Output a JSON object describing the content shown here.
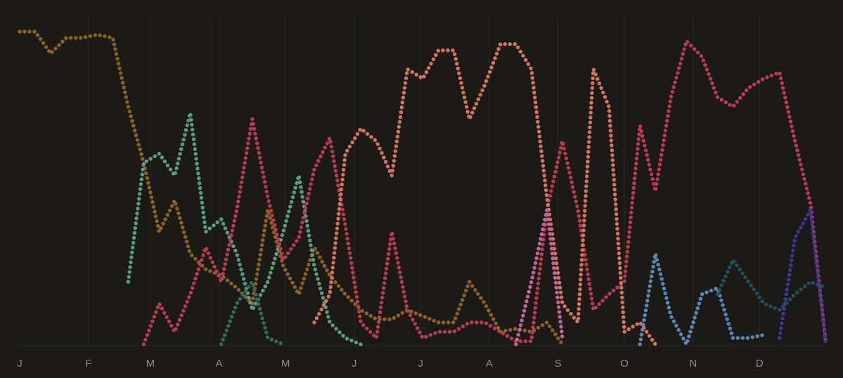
{
  "chart_data": {
    "type": "dotted-line",
    "x": [
      0,
      7,
      14,
      21,
      28,
      35,
      42,
      49,
      56,
      63,
      70,
      77,
      84,
      91,
      98,
      105,
      112,
      119,
      126,
      133,
      140,
      147,
      154,
      161,
      168,
      175,
      182,
      189,
      196,
      203,
      210,
      217,
      224,
      231,
      238,
      245,
      252,
      259,
      266,
      273,
      280,
      287,
      294,
      301,
      308,
      315,
      322,
      329,
      336,
      343,
      350,
      357,
      364
    ],
    "xlim": [
      0,
      365
    ],
    "xticks": [
      {
        "value": 0,
        "label": "J"
      },
      {
        "value": 31,
        "label": "F"
      },
      {
        "value": 59,
        "label": "M"
      },
      {
        "value": 90,
        "label": "A"
      },
      {
        "value": 120,
        "label": "M"
      },
      {
        "value": 151,
        "label": "J"
      },
      {
        "value": 181,
        "label": "J"
      },
      {
        "value": 212,
        "label": "A"
      },
      {
        "value": 243,
        "label": "S"
      },
      {
        "value": 273,
        "label": "O"
      },
      {
        "value": 304,
        "label": "N"
      },
      {
        "value": 334,
        "label": "D"
      }
    ],
    "ylim": [
      0,
      100
    ],
    "grid": true,
    "series": [
      {
        "color": "#8c5f24",
        "values": [
          100,
          100,
          93,
          98,
          98,
          99,
          98,
          76,
          58,
          36,
          46,
          29,
          24,
          22,
          18,
          13,
          43,
          25,
          16,
          31,
          22,
          16,
          11,
          8,
          8,
          11,
          9,
          7,
          7,
          20,
          13,
          4,
          5,
          4,
          7,
          0,
          null,
          null,
          null,
          null,
          null,
          null,
          null,
          null,
          null,
          null,
          null,
          null,
          null,
          null,
          null,
          null,
          null
        ]
      },
      {
        "color": "#5a9b7c",
        "values": [
          null,
          null,
          null,
          null,
          null,
          null,
          null,
          20,
          58,
          61,
          54,
          74,
          36,
          40,
          29,
          11,
          20,
          36,
          54,
          25,
          7,
          2,
          0,
          null,
          null,
          null,
          null,
          null,
          null,
          null,
          null,
          null,
          null,
          null,
          null,
          null,
          null,
          null,
          null,
          null,
          null,
          null,
          null,
          null,
          null,
          null,
          null,
          null,
          null,
          null,
          null,
          null,
          null
        ]
      },
      {
        "color": "#2f6b4f",
        "values": [
          null,
          null,
          null,
          null,
          null,
          null,
          null,
          null,
          null,
          null,
          null,
          null,
          null,
          0,
          13,
          20,
          2,
          0,
          null,
          null,
          null,
          null,
          null,
          null,
          null,
          null,
          null,
          null,
          null,
          null,
          null,
          null,
          null,
          null,
          null,
          null,
          null,
          null,
          null,
          null,
          null,
          null,
          null,
          null,
          null,
          null,
          null,
          null,
          null,
          null,
          null,
          null,
          null
        ]
      },
      {
        "color": "#b63a50",
        "values": [
          null,
          null,
          null,
          null,
          null,
          null,
          null,
          null,
          0,
          13,
          4,
          16,
          31,
          20,
          43,
          72,
          47,
          27,
          34,
          56,
          66,
          38,
          7,
          2,
          36,
          11,
          2,
          4,
          4,
          7,
          7,
          4,
          1,
          1,
          43,
          65,
          43,
          11,
          16,
          20,
          70,
          49,
          79,
          97,
          92,
          79,
          76,
          82,
          85,
          87,
          65,
          45,
          0
        ]
      },
      {
        "color": "#d2735b",
        "values": [
          null,
          null,
          null,
          null,
          null,
          null,
          null,
          null,
          null,
          null,
          null,
          null,
          null,
          null,
          null,
          null,
          null,
          null,
          null,
          7,
          16,
          61,
          69,
          65,
          54,
          88,
          85,
          94,
          94,
          72,
          83,
          96,
          96,
          88,
          47,
          13,
          7,
          88,
          76,
          4,
          7,
          0,
          null,
          null,
          null,
          null,
          null,
          null,
          null,
          null,
          null,
          null,
          null
        ]
      },
      {
        "color": "#c0649a",
        "values": [
          null,
          null,
          null,
          null,
          null,
          null,
          null,
          null,
          null,
          null,
          null,
          null,
          null,
          null,
          null,
          null,
          null,
          null,
          null,
          null,
          null,
          null,
          null,
          null,
          null,
          null,
          null,
          null,
          null,
          null,
          null,
          null,
          0,
          20,
          43,
          2,
          null,
          null,
          null,
          null,
          null,
          null,
          null,
          null,
          null,
          null,
          null,
          null,
          null,
          null,
          null,
          null,
          null
        ]
      },
      {
        "color": "#5a86b5",
        "values": [
          null,
          null,
          null,
          null,
          null,
          null,
          null,
          null,
          null,
          null,
          null,
          null,
          null,
          null,
          null,
          null,
          null,
          null,
          null,
          null,
          null,
          null,
          null,
          null,
          null,
          null,
          null,
          null,
          null,
          null,
          null,
          null,
          null,
          null,
          null,
          null,
          null,
          null,
          null,
          null,
          0,
          29,
          9,
          0,
          16,
          18,
          2,
          2,
          3,
          null,
          null,
          null,
          null
        ]
      },
      {
        "color": "#1f4e5a",
        "values": [
          null,
          null,
          null,
          null,
          null,
          null,
          null,
          null,
          null,
          null,
          null,
          null,
          null,
          null,
          null,
          null,
          null,
          null,
          null,
          null,
          null,
          null,
          null,
          null,
          null,
          null,
          null,
          null,
          null,
          null,
          null,
          null,
          null,
          null,
          null,
          null,
          null,
          null,
          null,
          null,
          null,
          null,
          null,
          null,
          null,
          16,
          27,
          20,
          13,
          11,
          16,
          20,
          18
        ]
      },
      {
        "color": "#3c3591",
        "values": [
          null,
          null,
          null,
          null,
          null,
          null,
          null,
          null,
          null,
          null,
          null,
          null,
          null,
          null,
          null,
          null,
          null,
          null,
          null,
          null,
          null,
          null,
          null,
          null,
          null,
          null,
          null,
          null,
          null,
          null,
          null,
          null,
          null,
          null,
          null,
          null,
          null,
          null,
          null,
          null,
          null,
          null,
          null,
          null,
          null,
          null,
          null,
          null,
          null,
          2,
          34,
          43,
          0
        ]
      }
    ]
  }
}
